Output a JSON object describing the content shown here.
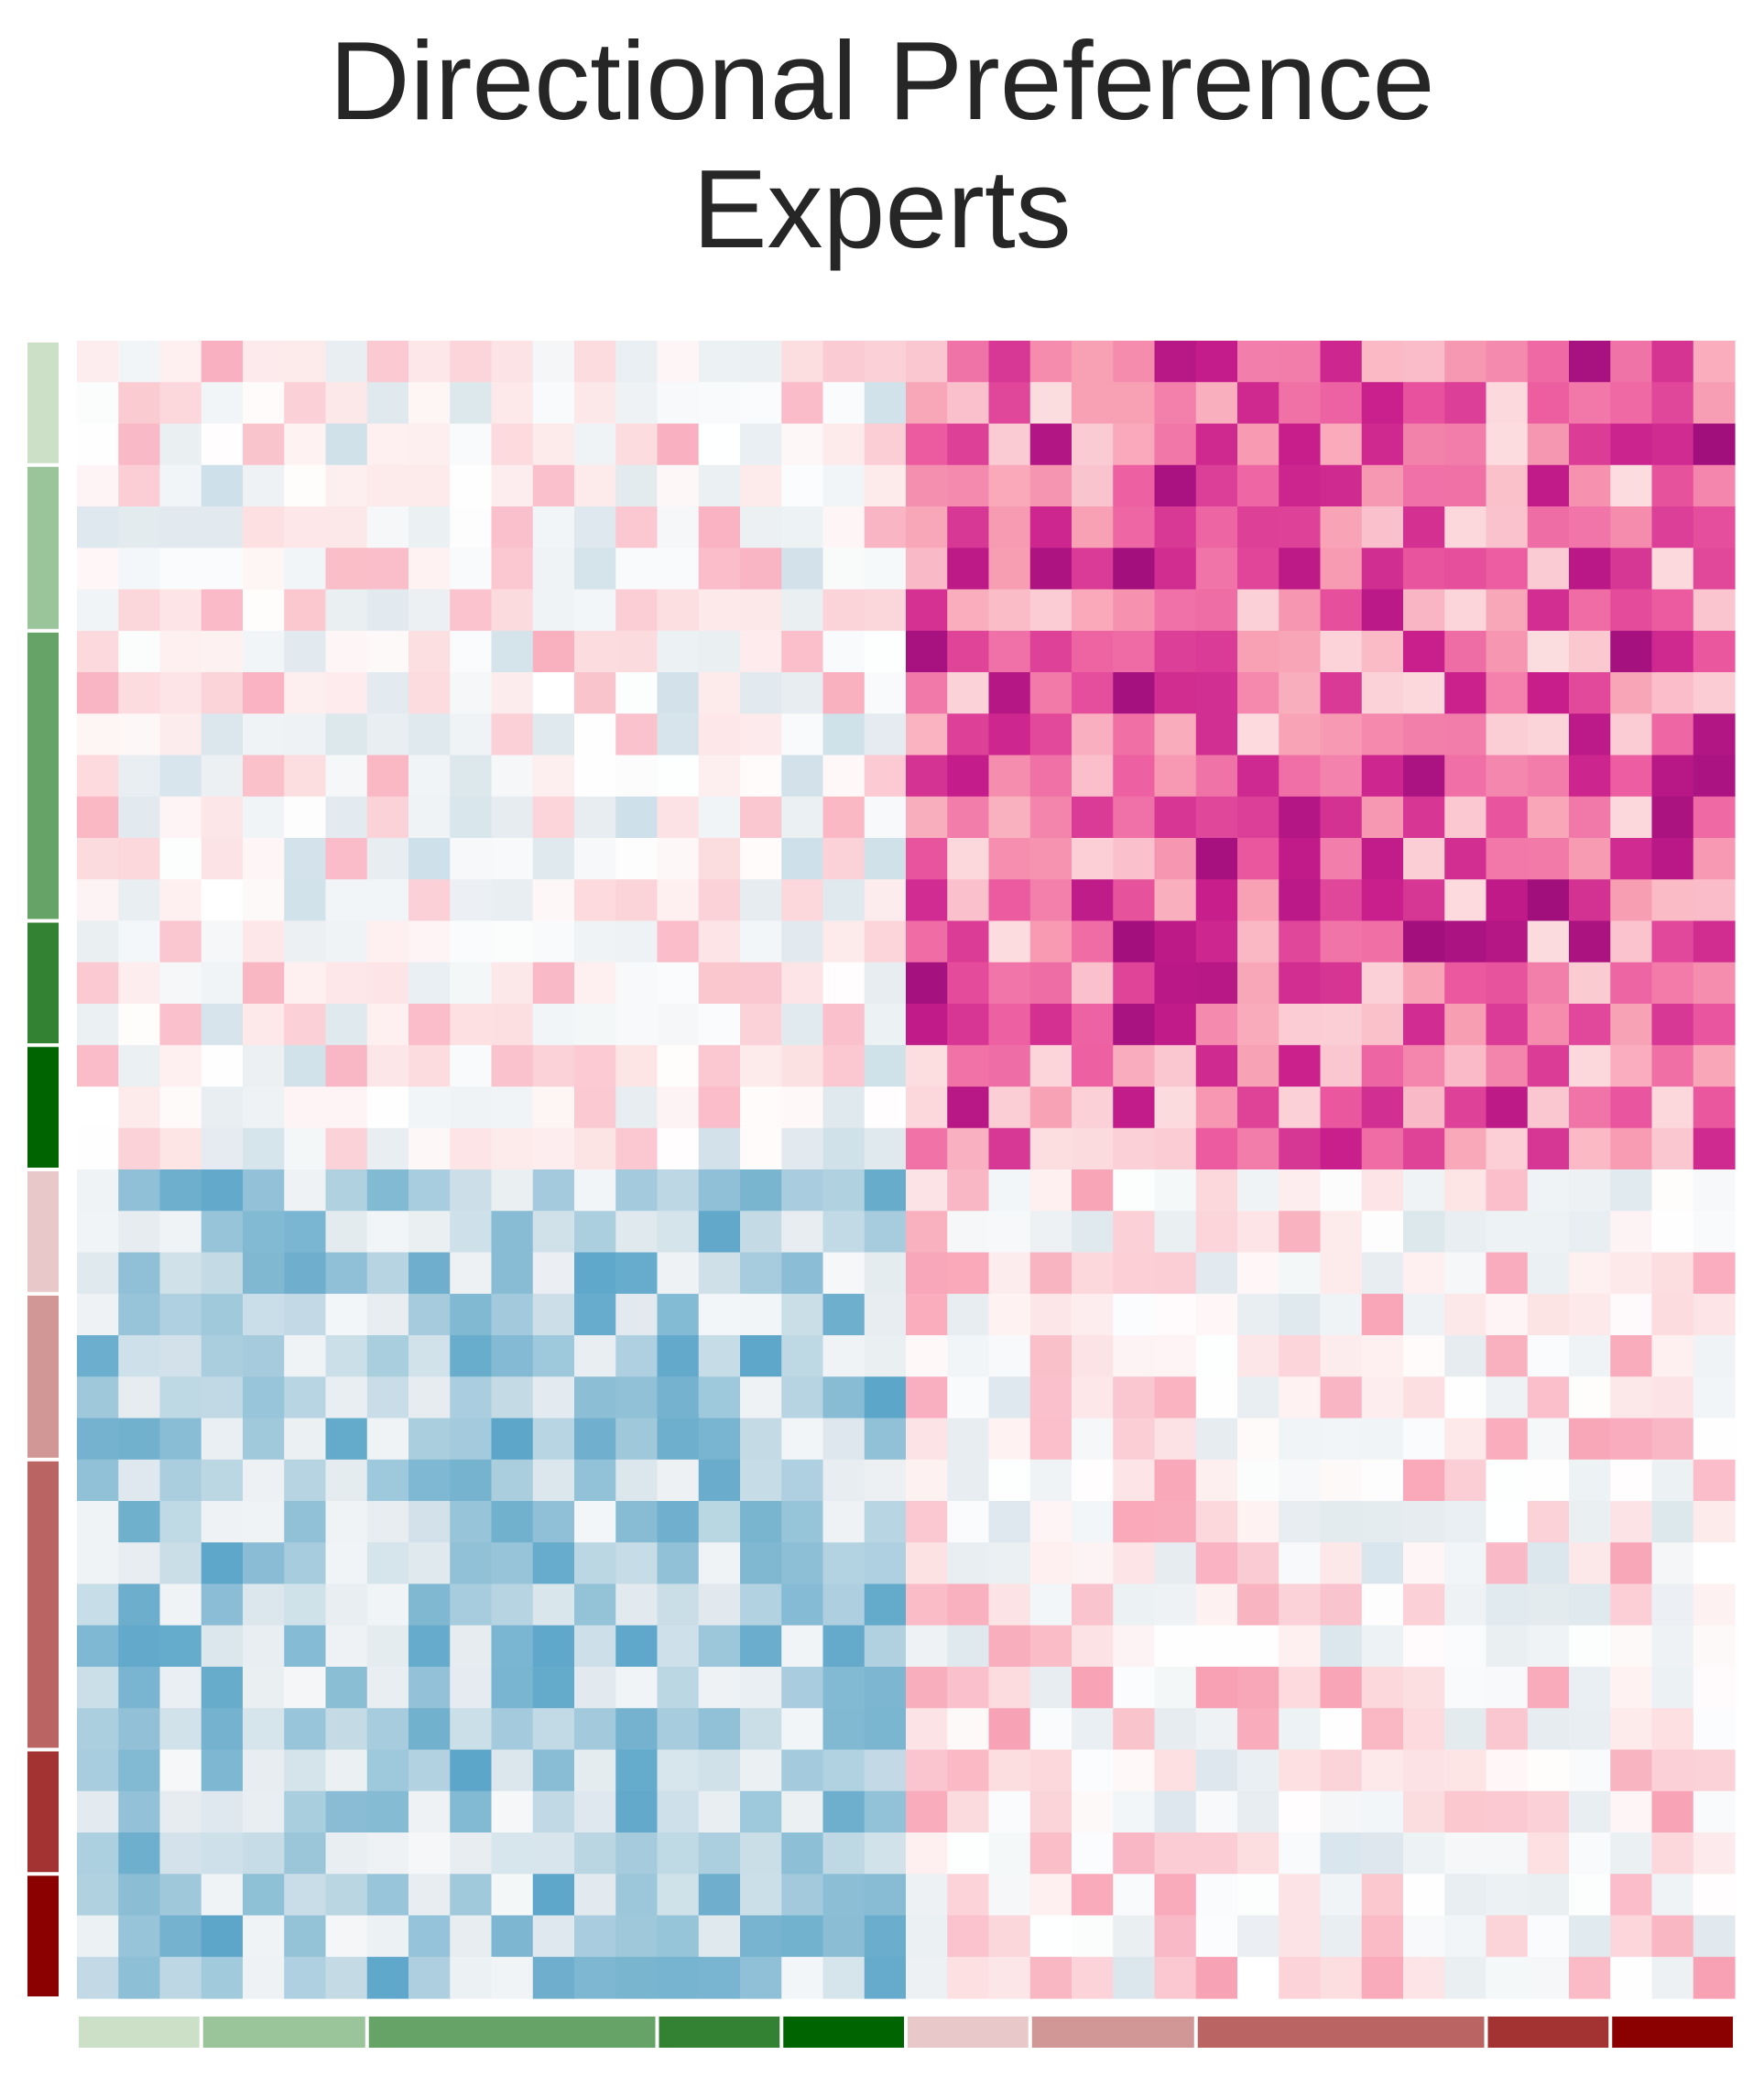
{
  "title_line1": "Directional Preference",
  "title_line2": "Experts",
  "chart_data": {
    "type": "heatmap",
    "title": "Directional Preference Experts",
    "rows": 40,
    "cols": 40,
    "xlabel": "",
    "ylabel": "",
    "colormap": "diverging blue (low) - white - pink/magenta (high)",
    "value_range": [
      -1,
      1
    ],
    "row_group_sizes": [
      3,
      4,
      7,
      3,
      3,
      3,
      4,
      7,
      3,
      3
    ],
    "col_group_sizes": [
      3,
      4,
      7,
      3,
      3,
      3,
      4,
      7,
      3,
      3
    ],
    "group_colors": [
      "#cce0c8",
      "#9ac49a",
      "#66a366",
      "#338233",
      "#006400",
      "#e8c8c8",
      "#d19696",
      "#ba6464",
      "#a33232",
      "#8b0000"
    ],
    "pattern": {
      "top_left_mean": 0.0,
      "top_right_mean": 0.55,
      "bottom_left_mean": -0.45,
      "bottom_right_mean": 0.05
    }
  }
}
